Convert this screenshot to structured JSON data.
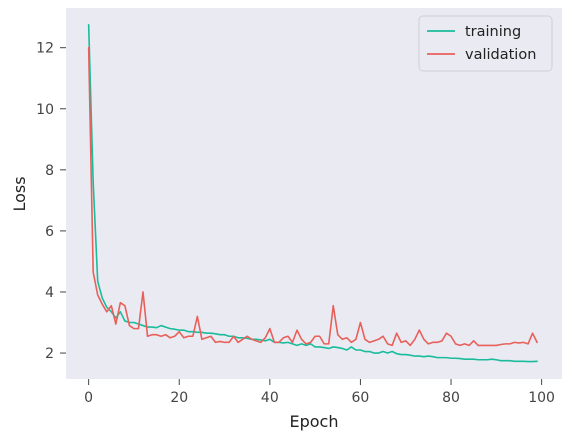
{
  "chart_data": {
    "type": "line",
    "title": "",
    "xlabel": "Epoch",
    "ylabel": "Loss",
    "xlim": [
      -5,
      104.5
    ],
    "ylim": [
      1.15,
      13.3
    ],
    "xticks": [
      0,
      20,
      40,
      60,
      80,
      100
    ],
    "yticks": [
      2,
      4,
      6,
      8,
      10,
      12
    ],
    "grid": false,
    "legend_position": "top-right",
    "background": "#eaeaf2",
    "series": [
      {
        "name": "training",
        "color": "#1abc9c",
        "x": [
          0,
          1,
          2,
          3,
          4,
          5,
          6,
          7,
          8,
          9,
          10,
          11,
          12,
          13,
          14,
          15,
          16,
          17,
          18,
          19,
          20,
          21,
          22,
          23,
          24,
          25,
          26,
          27,
          28,
          29,
          30,
          31,
          32,
          33,
          34,
          35,
          36,
          37,
          38,
          39,
          40,
          41,
          42,
          43,
          44,
          45,
          46,
          47,
          48,
          49,
          50,
          51,
          52,
          53,
          54,
          55,
          56,
          57,
          58,
          59,
          60,
          61,
          62,
          63,
          64,
          65,
          66,
          67,
          68,
          69,
          70,
          71,
          72,
          73,
          74,
          75,
          76,
          77,
          78,
          79,
          80,
          81,
          82,
          83,
          84,
          85,
          86,
          87,
          88,
          89,
          90,
          91,
          92,
          93,
          94,
          95,
          96,
          97,
          98,
          99
        ],
        "y": [
          12.75,
          7.6,
          4.35,
          3.8,
          3.5,
          3.35,
          3.15,
          3.35,
          3.05,
          3.0,
          3.0,
          2.95,
          2.9,
          2.85,
          2.85,
          2.83,
          2.9,
          2.85,
          2.8,
          2.78,
          2.75,
          2.75,
          2.7,
          2.7,
          2.68,
          2.68,
          2.65,
          2.65,
          2.63,
          2.6,
          2.6,
          2.55,
          2.55,
          2.5,
          2.5,
          2.48,
          2.45,
          2.45,
          2.43,
          2.4,
          2.45,
          2.35,
          2.35,
          2.33,
          2.35,
          2.3,
          2.25,
          2.3,
          2.25,
          2.3,
          2.2,
          2.2,
          2.18,
          2.15,
          2.2,
          2.18,
          2.15,
          2.1,
          2.2,
          2.1,
          2.1,
          2.05,
          2.05,
          2.0,
          2.0,
          2.05,
          2.0,
          2.05,
          1.98,
          1.95,
          1.95,
          1.93,
          1.9,
          1.9,
          1.88,
          1.9,
          1.88,
          1.85,
          1.85,
          1.85,
          1.83,
          1.83,
          1.82,
          1.8,
          1.8,
          1.8,
          1.78,
          1.78,
          1.78,
          1.8,
          1.78,
          1.75,
          1.75,
          1.75,
          1.73,
          1.73,
          1.73,
          1.72,
          1.72,
          1.73
        ]
      },
      {
        "name": "validation",
        "color": "#e8605a",
        "x": [
          0,
          1,
          2,
          3,
          4,
          5,
          6,
          7,
          8,
          9,
          10,
          11,
          12,
          13,
          14,
          15,
          16,
          17,
          18,
          19,
          20,
          21,
          22,
          23,
          24,
          25,
          26,
          27,
          28,
          29,
          30,
          31,
          32,
          33,
          34,
          35,
          36,
          37,
          38,
          39,
          40,
          41,
          42,
          43,
          44,
          45,
          46,
          47,
          48,
          49,
          50,
          51,
          52,
          53,
          54,
          55,
          56,
          57,
          58,
          59,
          60,
          61,
          62,
          63,
          64,
          65,
          66,
          67,
          68,
          69,
          70,
          71,
          72,
          73,
          74,
          75,
          76,
          77,
          78,
          79,
          80,
          81,
          82,
          83,
          84,
          85,
          86,
          87,
          88,
          89,
          90,
          91,
          92,
          93,
          94,
          95,
          96,
          97,
          98,
          99
        ],
        "y": [
          12.0,
          4.65,
          3.9,
          3.6,
          3.35,
          3.55,
          2.95,
          3.65,
          3.55,
          2.9,
          2.8,
          2.8,
          4.0,
          2.55,
          2.6,
          2.6,
          2.55,
          2.6,
          2.5,
          2.55,
          2.7,
          2.5,
          2.55,
          2.55,
          3.2,
          2.45,
          2.5,
          2.55,
          2.35,
          2.38,
          2.35,
          2.35,
          2.55,
          2.35,
          2.45,
          2.55,
          2.45,
          2.4,
          2.35,
          2.5,
          2.8,
          2.35,
          2.35,
          2.5,
          2.55,
          2.35,
          2.75,
          2.45,
          2.3,
          2.35,
          2.55,
          2.55,
          2.3,
          2.3,
          3.55,
          2.6,
          2.45,
          2.5,
          2.35,
          2.45,
          3.0,
          2.45,
          2.35,
          2.4,
          2.45,
          2.55,
          2.3,
          2.25,
          2.65,
          2.35,
          2.4,
          2.25,
          2.45,
          2.75,
          2.45,
          2.3,
          2.35,
          2.35,
          2.4,
          2.65,
          2.55,
          2.3,
          2.25,
          2.3,
          2.25,
          2.4,
          2.25,
          2.25,
          2.25,
          2.25,
          2.25,
          2.28,
          2.3,
          2.3,
          2.35,
          2.33,
          2.35,
          2.3,
          2.65,
          2.35
        ]
      }
    ]
  }
}
